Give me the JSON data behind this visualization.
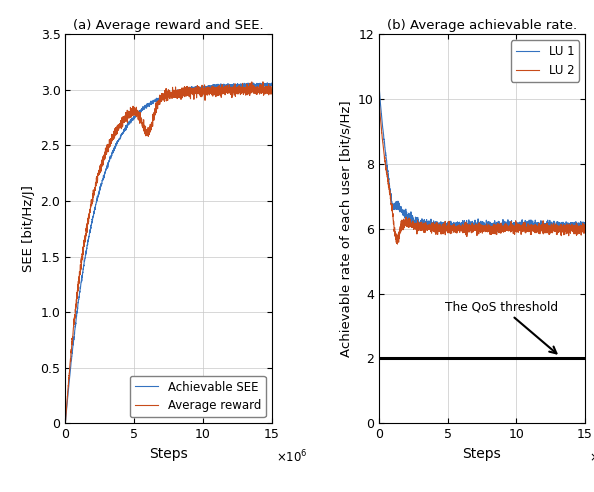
{
  "title_a": "(a) Average reward and SEE.",
  "title_b": "(b) Average achievable rate.",
  "xlabel": "Steps",
  "ylabel_a": "SEE [bit/Hz/J]",
  "ylabel_b": "Achievable rate of each user [bit/s/Hz]",
  "xlim": [
    0,
    15000000
  ],
  "ylim_a": [
    0,
    3.5
  ],
  "ylim_b": [
    0,
    12
  ],
  "xticks": [
    0,
    5000000,
    10000000,
    15000000
  ],
  "xtick_labels": [
    "0",
    "5",
    "10",
    "15"
  ],
  "yticks_a": [
    0,
    0.5,
    1.0,
    1.5,
    2.0,
    2.5,
    3.0,
    3.5
  ],
  "yticks_b": [
    0,
    2,
    4,
    6,
    8,
    10,
    12
  ],
  "color_blue": "#3472C0",
  "color_orange": "#C84B1A",
  "color_black": "#000000",
  "legend_a": [
    "Achievable SEE",
    "Average reward"
  ],
  "legend_b": [
    "LU 1",
    "LU 2"
  ],
  "qos_threshold": 2.0,
  "qos_label": "The QoS threshold",
  "n_steps": 2000,
  "figsize": [
    5.94,
    4.92
  ],
  "dpi": 100,
  "linewidth": 0.8
}
